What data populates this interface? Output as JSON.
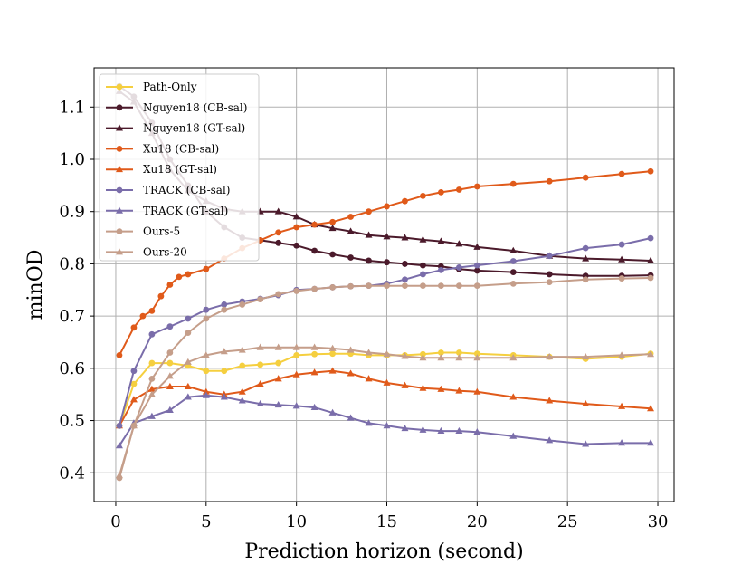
{
  "chart_data": {
    "type": "line",
    "title": "",
    "xlabel": "Prediction horizon (second)",
    "ylabel": "minOD",
    "xlim": [
      -1.2,
      30.9
    ],
    "ylim": [
      0.345,
      1.175
    ],
    "xticks": [
      0,
      5,
      10,
      15,
      20,
      25,
      30
    ],
    "xtick_labels": [
      "0",
      "5",
      "10",
      "15",
      "20",
      "25",
      "30"
    ],
    "yticks": [
      0.4,
      0.5,
      0.6,
      0.7,
      0.8,
      0.9,
      1.0,
      1.1
    ],
    "ytick_labels": [
      "0.4",
      "0.5",
      "0.6",
      "0.7",
      "0.8",
      "0.9",
      "1.0",
      "1.1"
    ],
    "grid": true,
    "legend_position": "top-left",
    "series": [
      {
        "name": "Path-Only",
        "color": "#F5CF3F",
        "marker": "circle",
        "x": [
          0.2,
          1,
          2,
          3,
          4,
          5,
          6,
          7,
          8,
          9,
          10,
          11,
          12,
          13,
          14,
          15,
          16,
          17,
          18,
          19,
          20,
          22,
          24,
          26,
          28,
          29.6
        ],
        "y": [
          0.49,
          0.57,
          0.61,
          0.61,
          0.605,
          0.595,
          0.595,
          0.605,
          0.607,
          0.61,
          0.625,
          0.627,
          0.628,
          0.628,
          0.625,
          0.625,
          0.625,
          0.627,
          0.63,
          0.63,
          0.628,
          0.625,
          0.622,
          0.618,
          0.622,
          0.628
        ]
      },
      {
        "name": "Nguyen18 (CB-sal)",
        "color": "#4B1A2B",
        "marker": "circle",
        "x": [
          0.2,
          1,
          2,
          3,
          4,
          5,
          6,
          7,
          8,
          9,
          10,
          11,
          12,
          13,
          14,
          15,
          16,
          17,
          18,
          19,
          20,
          22,
          24,
          26,
          28,
          29.6
        ],
        "y": [
          1.14,
          1.12,
          1.07,
          1.0,
          0.95,
          0.9,
          0.87,
          0.85,
          0.845,
          0.84,
          0.835,
          0.825,
          0.818,
          0.812,
          0.806,
          0.803,
          0.8,
          0.797,
          0.795,
          0.79,
          0.787,
          0.784,
          0.78,
          0.777,
          0.777,
          0.778
        ]
      },
      {
        "name": "Nguyen18 (GT-sal)",
        "color": "#4B1A2B",
        "marker": "triangle",
        "x": [
          0.2,
          1,
          2,
          3,
          4,
          5,
          6,
          7,
          8,
          9,
          10,
          11,
          12,
          13,
          14,
          15,
          16,
          17,
          18,
          19,
          20,
          22,
          24,
          26,
          28,
          29.6
        ],
        "y": [
          1.13,
          1.11,
          1.05,
          0.98,
          0.94,
          0.92,
          0.905,
          0.9,
          0.9,
          0.9,
          0.89,
          0.875,
          0.868,
          0.862,
          0.855,
          0.852,
          0.85,
          0.846,
          0.843,
          0.838,
          0.832,
          0.825,
          0.815,
          0.81,
          0.808,
          0.806
        ]
      },
      {
        "name": "Xu18 (CB-sal)",
        "color": "#E05A1A",
        "marker": "circle",
        "x": [
          0.2,
          1,
          1.5,
          2,
          2.5,
          3,
          3.5,
          4,
          5,
          6,
          7,
          8,
          9,
          10,
          11,
          12,
          13,
          14,
          15,
          16,
          17,
          18,
          19,
          20,
          22,
          24,
          26,
          28,
          29.6
        ],
        "y": [
          0.625,
          0.678,
          0.7,
          0.71,
          0.738,
          0.76,
          0.775,
          0.78,
          0.79,
          0.81,
          0.83,
          0.845,
          0.86,
          0.87,
          0.875,
          0.88,
          0.89,
          0.9,
          0.91,
          0.92,
          0.93,
          0.937,
          0.942,
          0.948,
          0.953,
          0.958,
          0.965,
          0.972,
          0.977
        ]
      },
      {
        "name": "Xu18 (GT-sal)",
        "color": "#E05A1A",
        "marker": "triangle",
        "x": [
          0.2,
          1,
          2,
          3,
          4,
          5,
          6,
          7,
          8,
          9,
          10,
          11,
          12,
          13,
          14,
          15,
          16,
          17,
          18,
          19,
          20,
          22,
          24,
          26,
          28,
          29.6
        ],
        "y": [
          0.49,
          0.54,
          0.56,
          0.565,
          0.565,
          0.555,
          0.55,
          0.555,
          0.57,
          0.58,
          0.588,
          0.592,
          0.595,
          0.59,
          0.58,
          0.572,
          0.567,
          0.562,
          0.56,
          0.557,
          0.555,
          0.545,
          0.538,
          0.532,
          0.527,
          0.523
        ]
      },
      {
        "name": "TRACK (CB-sal)",
        "color": "#7A6DAA",
        "marker": "circle",
        "x": [
          0.2,
          1,
          2,
          3,
          4,
          5,
          6,
          7,
          8,
          9,
          10,
          11,
          12,
          13,
          14,
          15,
          16,
          17,
          18,
          19,
          20,
          22,
          24,
          26,
          28,
          29.6
        ],
        "y": [
          0.49,
          0.595,
          0.665,
          0.68,
          0.695,
          0.712,
          0.722,
          0.728,
          0.733,
          0.74,
          0.75,
          0.752,
          0.755,
          0.757,
          0.758,
          0.762,
          0.77,
          0.78,
          0.788,
          0.793,
          0.797,
          0.805,
          0.815,
          0.83,
          0.837,
          0.849
        ]
      },
      {
        "name": "TRACK (GT-sal)",
        "color": "#7A6DAA",
        "marker": "triangle",
        "x": [
          0.2,
          1,
          2,
          3,
          4,
          5,
          6,
          7,
          8,
          9,
          10,
          11,
          12,
          13,
          14,
          15,
          16,
          17,
          18,
          19,
          20,
          22,
          24,
          26,
          28,
          29.6
        ],
        "y": [
          0.452,
          0.495,
          0.508,
          0.52,
          0.545,
          0.548,
          0.545,
          0.538,
          0.532,
          0.53,
          0.528,
          0.525,
          0.515,
          0.505,
          0.495,
          0.49,
          0.485,
          0.482,
          0.48,
          0.48,
          0.478,
          0.47,
          0.462,
          0.455,
          0.457,
          0.457
        ]
      },
      {
        "name": "Ours-5",
        "color": "#C59E8A",
        "marker": "circle",
        "x": [
          0.2,
          1,
          2,
          3,
          4,
          5,
          6,
          7,
          8,
          9,
          10,
          11,
          12,
          13,
          14,
          15,
          16,
          17,
          18,
          19,
          20,
          22,
          24,
          26,
          28,
          29.6
        ],
        "y": [
          0.39,
          0.49,
          0.58,
          0.63,
          0.668,
          0.695,
          0.712,
          0.722,
          0.732,
          0.742,
          0.748,
          0.752,
          0.755,
          0.757,
          0.758,
          0.758,
          0.758,
          0.758,
          0.758,
          0.758,
          0.758,
          0.762,
          0.765,
          0.77,
          0.772,
          0.773
        ]
      },
      {
        "name": "Ours-20",
        "color": "#C59E8A",
        "marker": "triangle",
        "x": [
          0.2,
          1,
          2,
          3,
          4,
          5,
          6,
          7,
          8,
          9,
          10,
          11,
          12,
          13,
          14,
          15,
          16,
          17,
          18,
          19,
          20,
          22,
          24,
          26,
          28,
          29.6
        ],
        "y": [
          0.395,
          0.49,
          0.55,
          0.585,
          0.612,
          0.625,
          0.632,
          0.635,
          0.64,
          0.64,
          0.64,
          0.64,
          0.638,
          0.635,
          0.63,
          0.627,
          0.623,
          0.62,
          0.62,
          0.62,
          0.62,
          0.62,
          0.622,
          0.622,
          0.625,
          0.627
        ]
      }
    ]
  }
}
